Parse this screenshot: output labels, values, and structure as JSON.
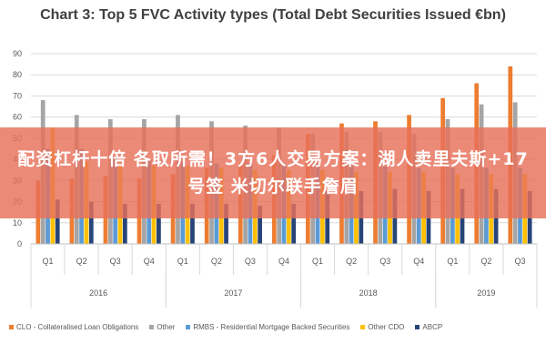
{
  "chart_data": {
    "type": "bar",
    "title": "Chart 3: Top 5 FVC Activity types (Total Debt Securities Issued €bn)",
    "xlabel": "",
    "ylabel": "",
    "ylim": [
      0,
      90
    ],
    "yticks": [
      0,
      10,
      20,
      30,
      40,
      50,
      60,
      70,
      80,
      90
    ],
    "grid": true,
    "legend_position": "bottom",
    "categories": [
      "Q1",
      "Q2",
      "Q3",
      "Q4",
      "Q1",
      "Q2",
      "Q3",
      "Q4",
      "Q1",
      "Q2",
      "Q3",
      "Q4",
      "Q1",
      "Q2",
      "Q3"
    ],
    "category_groups": [
      {
        "label": "2016",
        "count": 4
      },
      {
        "label": "2017",
        "count": 4
      },
      {
        "label": "2018",
        "count": 4
      },
      {
        "label": "2019",
        "count": 3
      }
    ],
    "series": [
      {
        "name": "CLO - Collateralised Loan Obligations",
        "color": "#ED7D31",
        "values": [
          30,
          31,
          32,
          31,
          33,
          36,
          38,
          42,
          52,
          57,
          58,
          61,
          69,
          76,
          84
        ]
      },
      {
        "name": "Other",
        "color": "#A5A5A5",
        "values": [
          68,
          61,
          59,
          59,
          61,
          58,
          56,
          55,
          52,
          53,
          53,
          52,
          59,
          66,
          67
        ]
      },
      {
        "name": "RMBS - Residential Mortgage Backed Securities",
        "color": "#5B9BD5",
        "values": [
          45,
          45,
          41,
          40,
          39,
          38,
          38,
          38,
          38,
          37,
          37,
          36,
          36,
          36,
          36
        ]
      },
      {
        "name": "Other CDO",
        "color": "#FFC000",
        "values": [
          55,
          39,
          38,
          37,
          37,
          36,
          35,
          35,
          35,
          34,
          34,
          34,
          33,
          33,
          33
        ]
      },
      {
        "name": "ABCP",
        "color": "#264478",
        "values": [
          21,
          20,
          19,
          19,
          19,
          19,
          18,
          19,
          25,
          25,
          26,
          25,
          26,
          26,
          25
        ]
      }
    ]
  },
  "overlay": {
    "text": "配资杠杆十倍 各取所需！3方6人交易方案：湖人卖里夫斯+17号签 米切尔联手詹眉"
  }
}
